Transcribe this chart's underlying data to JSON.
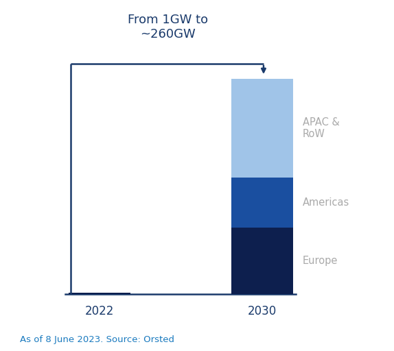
{
  "years": [
    "2022",
    "2030"
  ],
  "bar_width": 0.38,
  "europe_2022": 1,
  "europe_2030": 80,
  "americas_2030": 60,
  "apac_row_2030": 120,
  "total_2030": 260,
  "color_europe": "#0d1f4e",
  "color_americas": "#1a4fa0",
  "color_apac": "#a0c4e8",
  "color_2022_bar": "#0d1f4e",
  "title_text": "From 1GW to\n~260GW",
  "annotation_text": "As of 8 June 2023. Source: Orsted",
  "label_europe": "Europe",
  "label_americas": "Americas",
  "label_apac": "APAC &\nRoW",
  "axis_line_color": "#1a3a6b",
  "label_color": "#aaaaaa",
  "annotation_color": "#1a7abf",
  "title_color": "#1a3a6b",
  "ylim_max": 280,
  "figsize": [
    5.74,
    5.12
  ],
  "dpi": 100
}
